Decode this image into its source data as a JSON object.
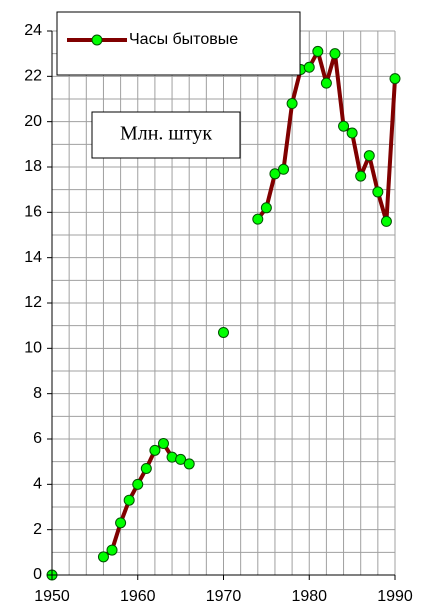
{
  "chart_data": {
    "type": "line",
    "annotation": "Млн. штук",
    "x": [
      1950,
      1951,
      1952,
      1953,
      1954,
      1955,
      1956,
      1957,
      1958,
      1959,
      1960,
      1961,
      1962,
      1963,
      1964,
      1965,
      1966,
      1967,
      1968,
      1969,
      1970,
      1971,
      1972,
      1973,
      1974,
      1975,
      1976,
      1977,
      1978,
      1979,
      1980,
      1981,
      1982,
      1983,
      1984,
      1985,
      1986,
      1987,
      1988,
      1989,
      1990
    ],
    "series": [
      {
        "name": "Часы бытовые",
        "color": "#800000",
        "marker_color": "#00ff00",
        "values": [
          0,
          null,
          null,
          null,
          null,
          null,
          0.8,
          1.1,
          2.3,
          3.3,
          4.0,
          4.7,
          5.5,
          5.8,
          5.2,
          5.1,
          4.9,
          null,
          null,
          null,
          10.7,
          null,
          null,
          null,
          15.7,
          16.2,
          17.7,
          17.9,
          20.8,
          22.3,
          22.4,
          23.1,
          21.7,
          23.0,
          19.8,
          19.5,
          17.6,
          18.5,
          16.9,
          15.6,
          21.9
        ]
      }
    ],
    "xlim": [
      1950,
      1990
    ],
    "xticks": [
      1950,
      1960,
      1970,
      1980,
      1990
    ],
    "xminorticks": [
      1952,
      1954,
      1956,
      1958,
      1962,
      1964,
      1966,
      1968,
      1972,
      1974,
      1976,
      1978,
      1982,
      1984,
      1986,
      1988
    ],
    "ylim": [
      0,
      24
    ],
    "yticks": [
      0,
      2,
      4,
      6,
      8,
      10,
      12,
      14,
      16,
      18,
      20,
      22,
      24
    ],
    "yminorticks": [
      1,
      3,
      5,
      7,
      9,
      11,
      13,
      15,
      17,
      19,
      21,
      23
    ],
    "grid": true,
    "legend": "top-left"
  }
}
